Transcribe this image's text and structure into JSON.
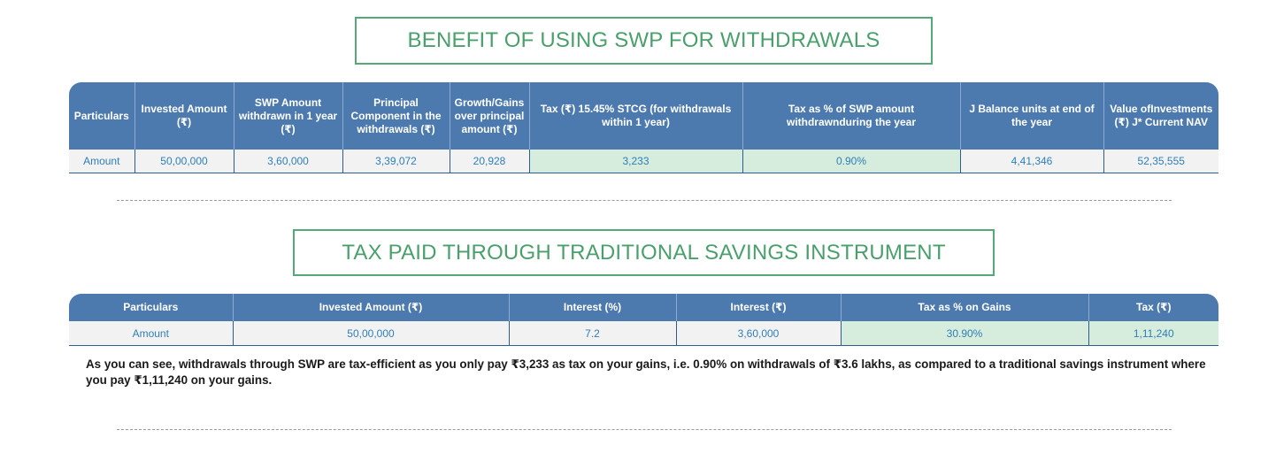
{
  "section1": {
    "title": "BENEFIT OF USING SWP FOR WITHDRAWALS",
    "headers": [
      "Particulars",
      "Invested Amount (₹)",
      "SWP Amount withdrawn in 1 year (₹)",
      "Principal Component in the withdrawals (₹)",
      "Growth/Gains over principal amount (₹)",
      "Tax (₹) 15.45% STCG (for withdrawals within 1 year)",
      "Tax as % of SWP amount withdrawnduring the year",
      "J Balance units at end of the year",
      "Value ofInvestments (₹) J* Current NAV"
    ],
    "row": [
      "Amount",
      "50,00,000",
      "3,60,000",
      "3,39,072",
      "20,928",
      "3,233",
      "0.90%",
      "4,41,346",
      "52,35,555"
    ]
  },
  "section2": {
    "title": "TAX PAID THROUGH TRADITIONAL SAVINGS INSTRUMENT",
    "headers": [
      "Particulars",
      "Invested Amount (₹)",
      "Interest (%)",
      "Interest (₹)",
      "Tax as % on Gains",
      "Tax (₹)"
    ],
    "row": [
      "Amount",
      "50,00,000",
      "7.2",
      "3,60,000",
      "30.90%",
      "1,11,240"
    ]
  },
  "summary": "As you can see, withdrawals through SWP are tax-efficient as you only pay ₹3,233 as tax on your gains, i.e. 0.90% on withdrawals of ₹3.6 lakhs, as compared to a traditional savings instrument where you pay ₹1,11,240 on your gains.",
  "colors": {
    "header_bg": "#4d7aae",
    "title_green": "#4a9f6c",
    "highlight_green": "#d6ecdc",
    "cell_text": "#2f7fb8"
  }
}
